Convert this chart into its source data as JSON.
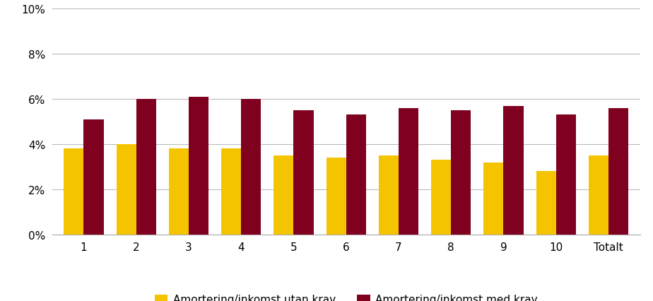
{
  "categories": [
    "1",
    "2",
    "3",
    "4",
    "5",
    "6",
    "7",
    "8",
    "9",
    "10",
    "Totalt"
  ],
  "utan_krav": [
    0.038,
    0.04,
    0.038,
    0.038,
    0.035,
    0.034,
    0.035,
    0.033,
    0.032,
    0.028,
    0.035
  ],
  "med_krav": [
    0.051,
    0.06,
    0.061,
    0.06,
    0.055,
    0.053,
    0.056,
    0.055,
    0.057,
    0.053,
    0.056
  ],
  "color_utan": "#F5C400",
  "color_med": "#800020",
  "legend_utan": "Amortering/inkomst utan krav",
  "legend_med": "Amortering/inkomst med krav",
  "ylim": [
    0,
    0.1
  ],
  "yticks": [
    0,
    0.02,
    0.04,
    0.06,
    0.08,
    0.1
  ],
  "bar_width": 0.38,
  "background_color": "#ffffff",
  "grid_color": "#bbbbbb"
}
